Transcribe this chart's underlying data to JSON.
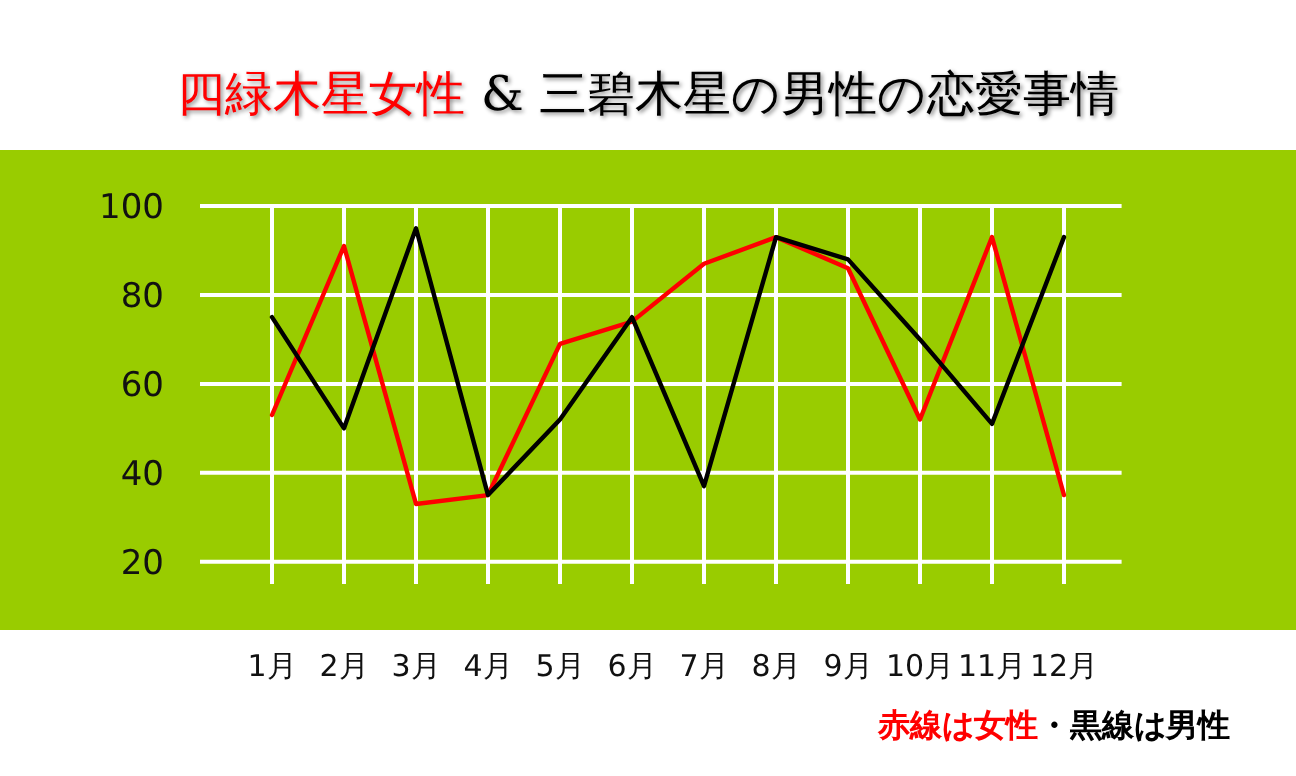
{
  "chart_data": {
    "type": "line",
    "title": "四緑木星女性",
    "subtitle": "& 三碧木星の男性の恋愛事情",
    "categories": [
      "1月",
      "2月",
      "3月",
      "4月",
      "5月",
      "6月",
      "7月",
      "8月",
      "9月",
      "10月",
      "11月",
      "12月"
    ],
    "series": [
      {
        "color": "#ff0000",
        "values": [
          53,
          91,
          33,
          35,
          69,
          74,
          87,
          93,
          86,
          52,
          93,
          35
        ]
      },
      {
        "color": "#000000",
        "values": [
          75,
          50,
          95,
          35,
          52,
          75,
          37,
          93,
          88,
          70,
          51,
          93
        ]
      }
    ],
    "ylim": [
      15,
      100
    ],
    "yticks": [
      20,
      40,
      60,
      80,
      100
    ],
    "grid": true,
    "legend": false,
    "marker": "none",
    "line_style": "solid",
    "annotations": [
      "赤線は女性",
      "・黒線は男性"
    ]
  }
}
